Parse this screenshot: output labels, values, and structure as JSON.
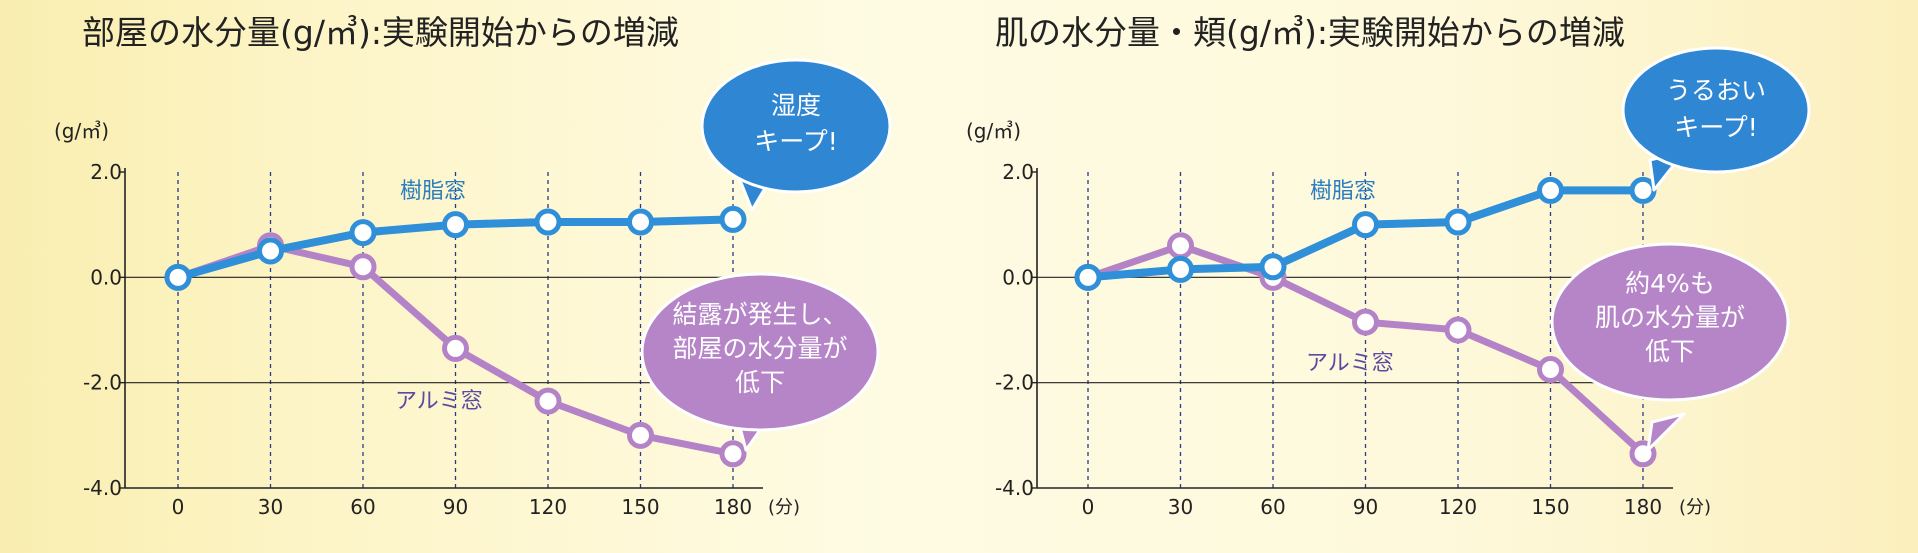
{
  "charts": [
    {
      "id": "room",
      "title": "部屋の水分量(g/㎥):実験開始からの増減",
      "unit_label": "(g/㎥)",
      "x_unit_label": "(分)",
      "series_labels": {
        "blue": "樹脂窓",
        "purple": "アルミ窓"
      },
      "bubbles": {
        "blue": [
          "湿度",
          "キープ!"
        ],
        "purple": [
          "結露が発生し、",
          "部屋の水分量が",
          "低下"
        ]
      }
    },
    {
      "id": "skin",
      "title": "肌の水分量・頬(g/㎥):実験開始からの増減",
      "unit_label": "(g/㎥)",
      "x_unit_label": "(分)",
      "series_labels": {
        "blue": "樹脂窓",
        "purple": "アルミ窓"
      },
      "bubbles": {
        "blue": [
          "うるおい",
          "キープ!"
        ],
        "purple": [
          "約4%も",
          "肌の水分量が",
          "低下"
        ]
      }
    }
  ],
  "colors": {
    "blue": "#2f8fd8",
    "purple": "#b483c7",
    "purple_text": "#5b4aa0",
    "blue_text": "#2a7dc0",
    "bubble_blue": "#2f86d2",
    "bubble_purple": "#b585c8"
  },
  "chart_data": [
    {
      "type": "line",
      "title": "部屋の水分量(g/㎥):実験開始からの増減",
      "xlabel": "(分)",
      "ylabel": "(g/㎥)",
      "x": [
        0,
        30,
        60,
        90,
        120,
        150,
        180
      ],
      "ylim": [
        -4.0,
        2.0
      ],
      "yticks": [
        "2.0",
        "0.0",
        "-2.0",
        "-4.0"
      ],
      "yticks_values": [
        2.0,
        0.0,
        -2.0,
        -4.0
      ],
      "series": [
        {
          "name": "樹脂窓",
          "values": [
            0.0,
            0.5,
            0.85,
            1.0,
            1.05,
            1.05,
            1.1
          ]
        },
        {
          "name": "アルミ窓",
          "values": [
            0.0,
            0.6,
            0.2,
            -1.35,
            -2.35,
            -3.0,
            -3.35
          ]
        }
      ],
      "grid": "vertical-dashed + zero line",
      "legend": "inline labels"
    },
    {
      "type": "line",
      "title": "肌の水分量・頬(g/㎥):実験開始からの増減",
      "xlabel": "(分)",
      "ylabel": "(g/㎥)",
      "x": [
        0,
        30,
        60,
        90,
        120,
        150,
        180
      ],
      "ylim": [
        -4.0,
        2.0
      ],
      "yticks": [
        "2.0",
        "0.0",
        "-2.0",
        "-4.0"
      ],
      "yticks_values": [
        2.0,
        0.0,
        -2.0,
        -4.0
      ],
      "series": [
        {
          "name": "樹脂窓",
          "values": [
            0.0,
            0.15,
            0.2,
            1.0,
            1.05,
            1.65,
            1.65
          ]
        },
        {
          "name": "アルミ窓",
          "values": [
            0.0,
            0.6,
            0.0,
            -0.85,
            -1.0,
            -1.75,
            -3.35
          ]
        }
      ],
      "grid": "vertical-dashed + zero line",
      "legend": "inline labels"
    }
  ]
}
